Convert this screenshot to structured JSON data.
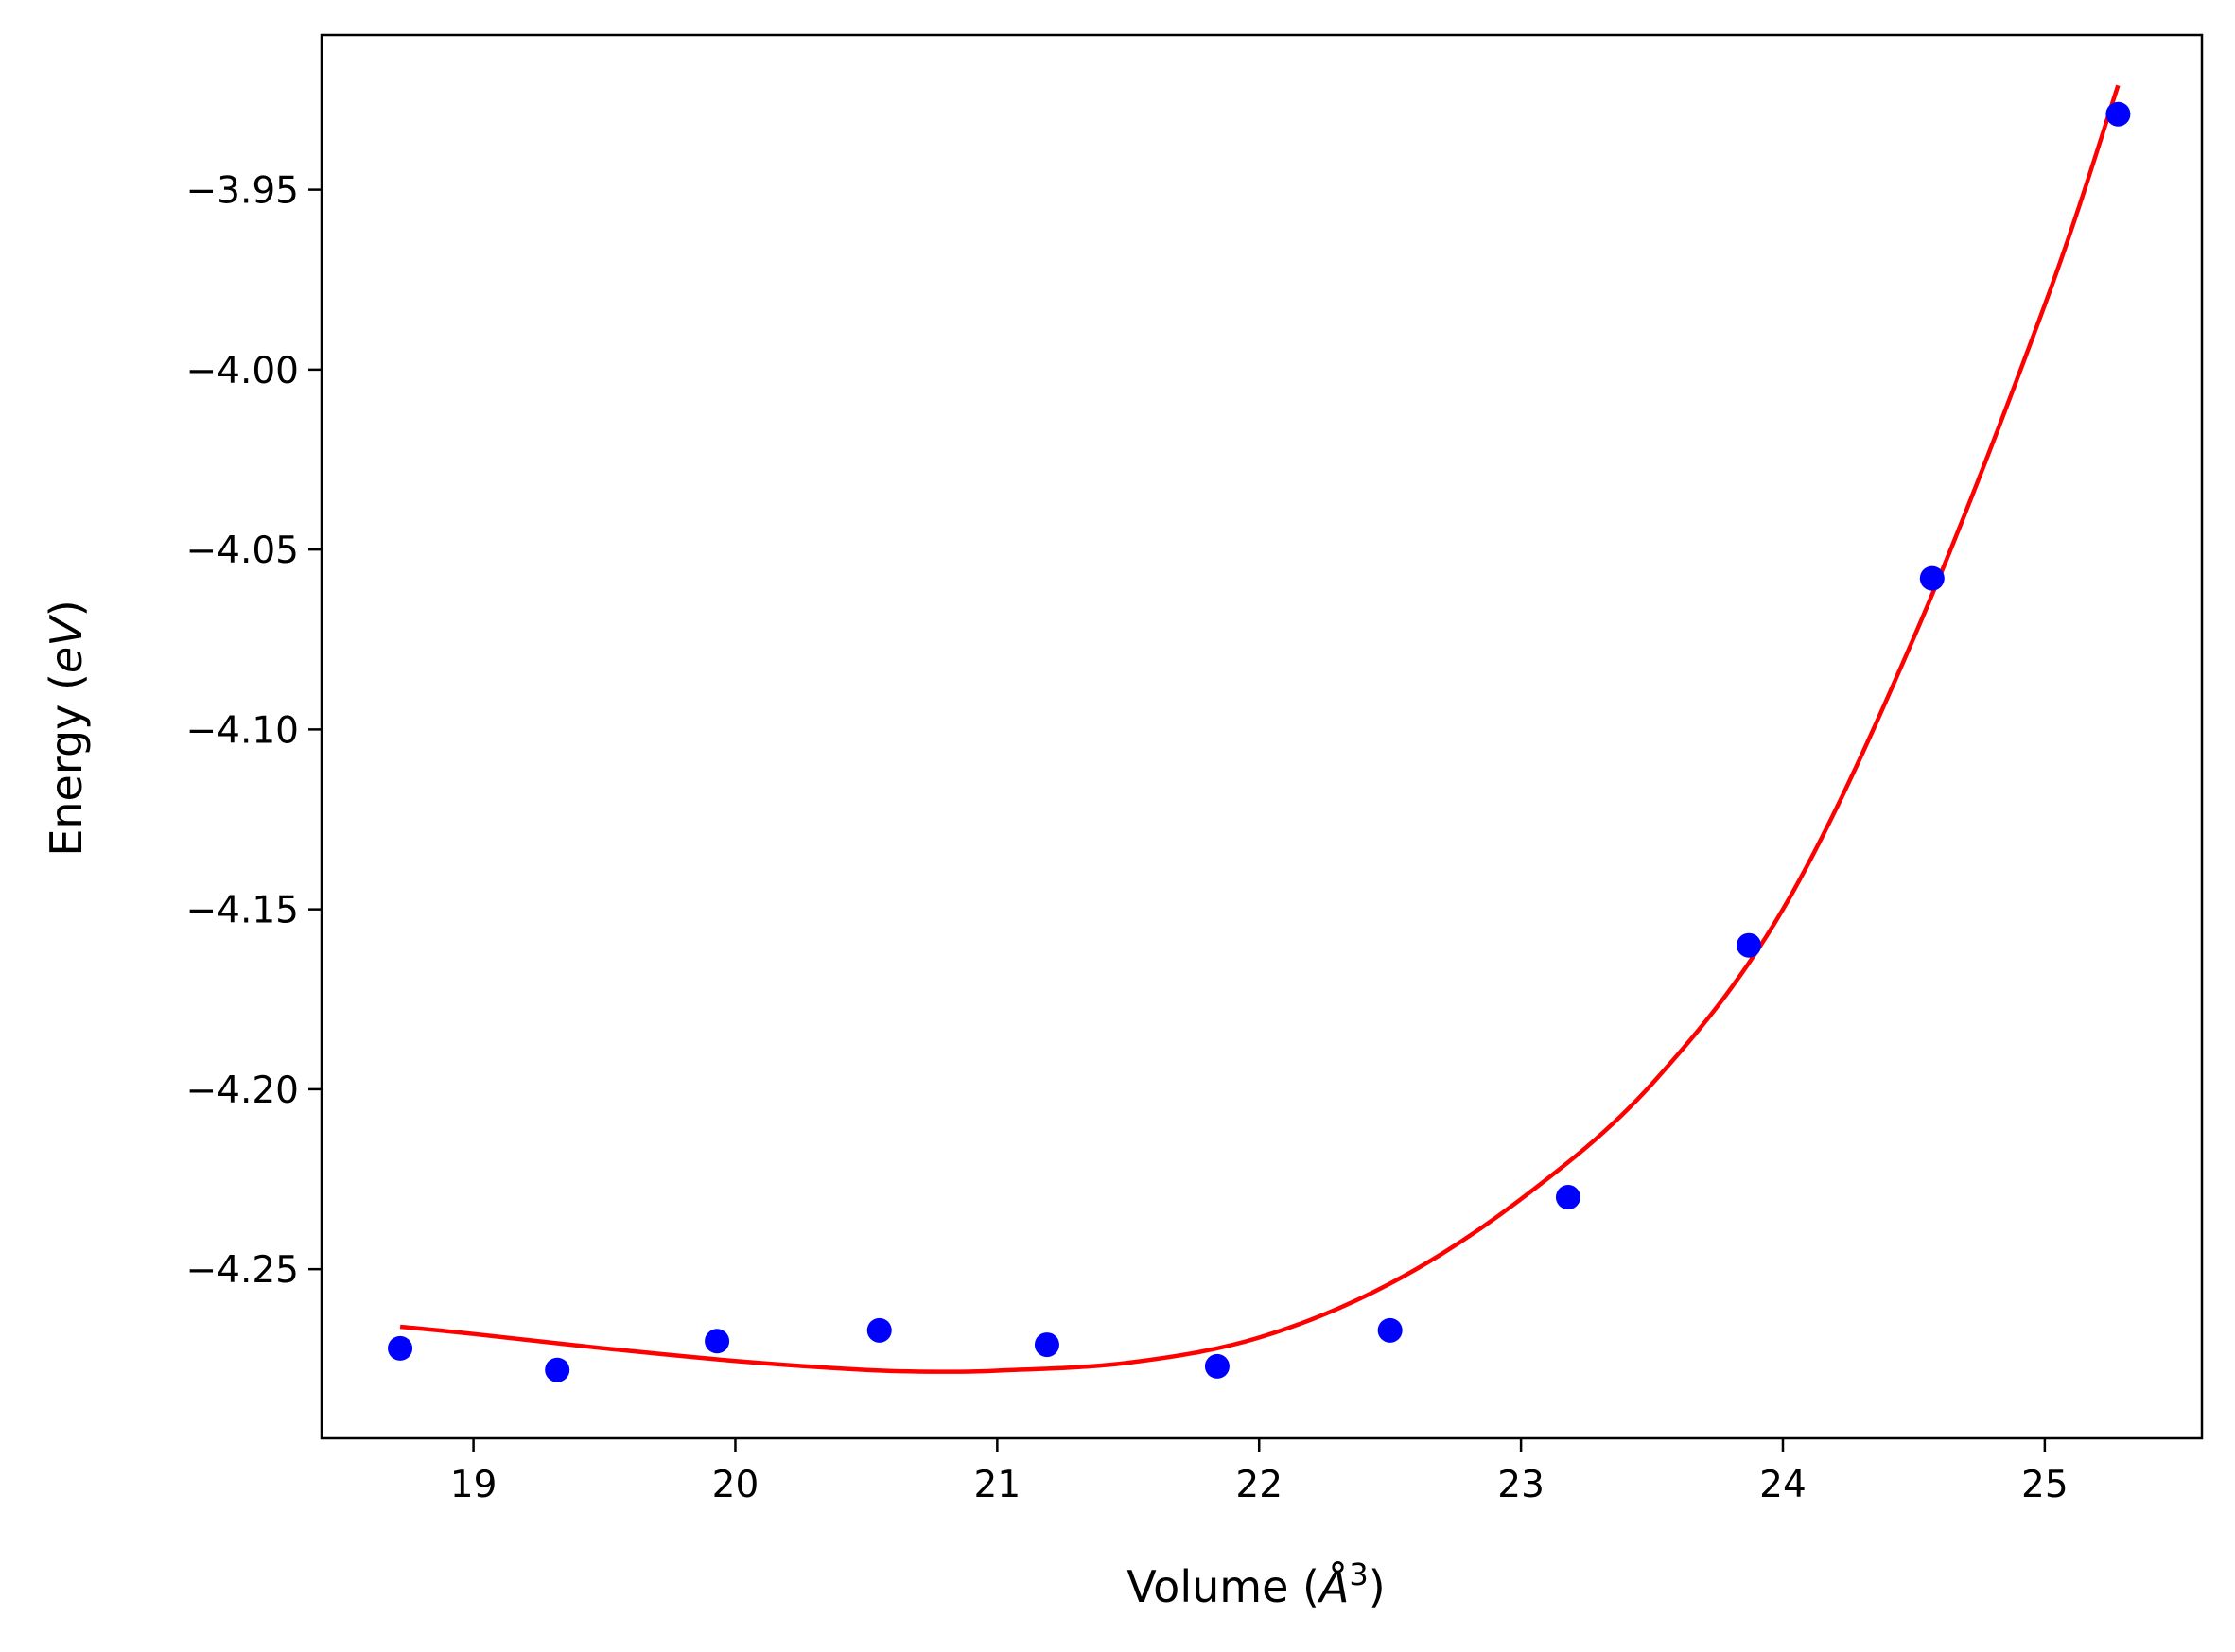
{
  "chart_data": {
    "type": "scatter",
    "title": "",
    "xlabel_main": "Volume (",
    "xlabel_unit": "Å",
    "xlabel_sup": "3",
    "xlabel_end": ")",
    "ylabel_main": "Energy (",
    "ylabel_unit": "eV",
    "ylabel_end": ")",
    "xlim": [
      18.42,
      25.6
    ],
    "ylim": [
      -4.297,
      -3.907
    ],
    "xticks": [
      19,
      20,
      21,
      22,
      23,
      24,
      25
    ],
    "xtick_labels": [
      "19",
      "20",
      "21",
      "22",
      "23",
      "24",
      "25"
    ],
    "yticks": [
      -4.25,
      -4.2,
      -4.15,
      -4.1,
      -4.05,
      -4.0,
      -3.95
    ],
    "ytick_labels": [
      "−4.25",
      "−4.20",
      "−4.15",
      "−4.10",
      "−4.05",
      "−4.00",
      "−3.95"
    ],
    "grid": false,
    "series": [
      {
        "kind": "points",
        "color": "#0000ff",
        "x": [
          18.72,
          19.32,
          19.93,
          20.55,
          21.19,
          21.84,
          22.5,
          23.18,
          23.87,
          24.57,
          25.28
        ],
        "y": [
          -4.272,
          -4.278,
          -4.27,
          -4.267,
          -4.271,
          -4.277,
          -4.267,
          -4.23,
          -4.16,
          -4.058,
          -3.929
        ]
      },
      {
        "kind": "fit-line",
        "color": "#ff0000",
        "x": [
          18.72,
          19.0,
          19.5,
          20.0,
          20.5,
          20.8,
          21.0,
          21.5,
          22.0,
          22.5,
          23.0,
          23.5,
          24.0,
          24.5,
          25.0,
          25.28
        ],
        "y": [
          -4.266,
          -4.268,
          -4.272,
          -4.2755,
          -4.278,
          -4.2785,
          -4.2782,
          -4.276,
          -4.269,
          -4.254,
          -4.2305,
          -4.1985,
          -4.15,
          -4.0745,
          -3.982,
          -3.921
        ]
      }
    ]
  }
}
